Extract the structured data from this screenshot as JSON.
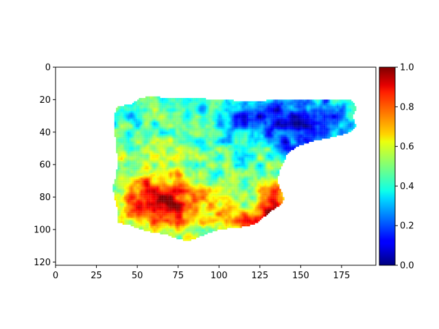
{
  "chart_data": {
    "type": "heatmap",
    "title": "",
    "xlabel": "",
    "ylabel": "",
    "xlim": [
      0,
      196
    ],
    "ylim": [
      122,
      0
    ],
    "x_ticks": [
      0,
      25,
      50,
      75,
      100,
      125,
      150,
      175
    ],
    "y_ticks": [
      0,
      20,
      40,
      60,
      80,
      100,
      120
    ],
    "x_tick_labels": [
      "0",
      "25",
      "50",
      "75",
      "100",
      "125",
      "150",
      "175"
    ],
    "y_tick_labels": [
      "0",
      "20",
      "40",
      "60",
      "80",
      "100",
      "120"
    ],
    "colormap": "jet",
    "colorbar": {
      "vmin": 0.0,
      "vmax": 1.0,
      "ticks": [
        0.0,
        0.2,
        0.4,
        0.6,
        0.8,
        1.0
      ],
      "tick_labels": [
        "0.0",
        "0.2",
        "0.4",
        "0.6",
        "0.8",
        "1.0"
      ]
    },
    "grid": false,
    "extent_note": "land mask approx. x 38–185, y 18–107; masked cells transparent",
    "region_summary": [
      {
        "region": "north / northeast",
        "value_approx": 0.15
      },
      {
        "region": "central plateau",
        "value_approx": 0.45
      },
      {
        "region": "west / southwest",
        "value_approx": 0.85
      },
      {
        "region": "south",
        "value_approx": 0.65
      },
      {
        "region": "east coast",
        "value_approx": 0.95
      }
    ]
  }
}
